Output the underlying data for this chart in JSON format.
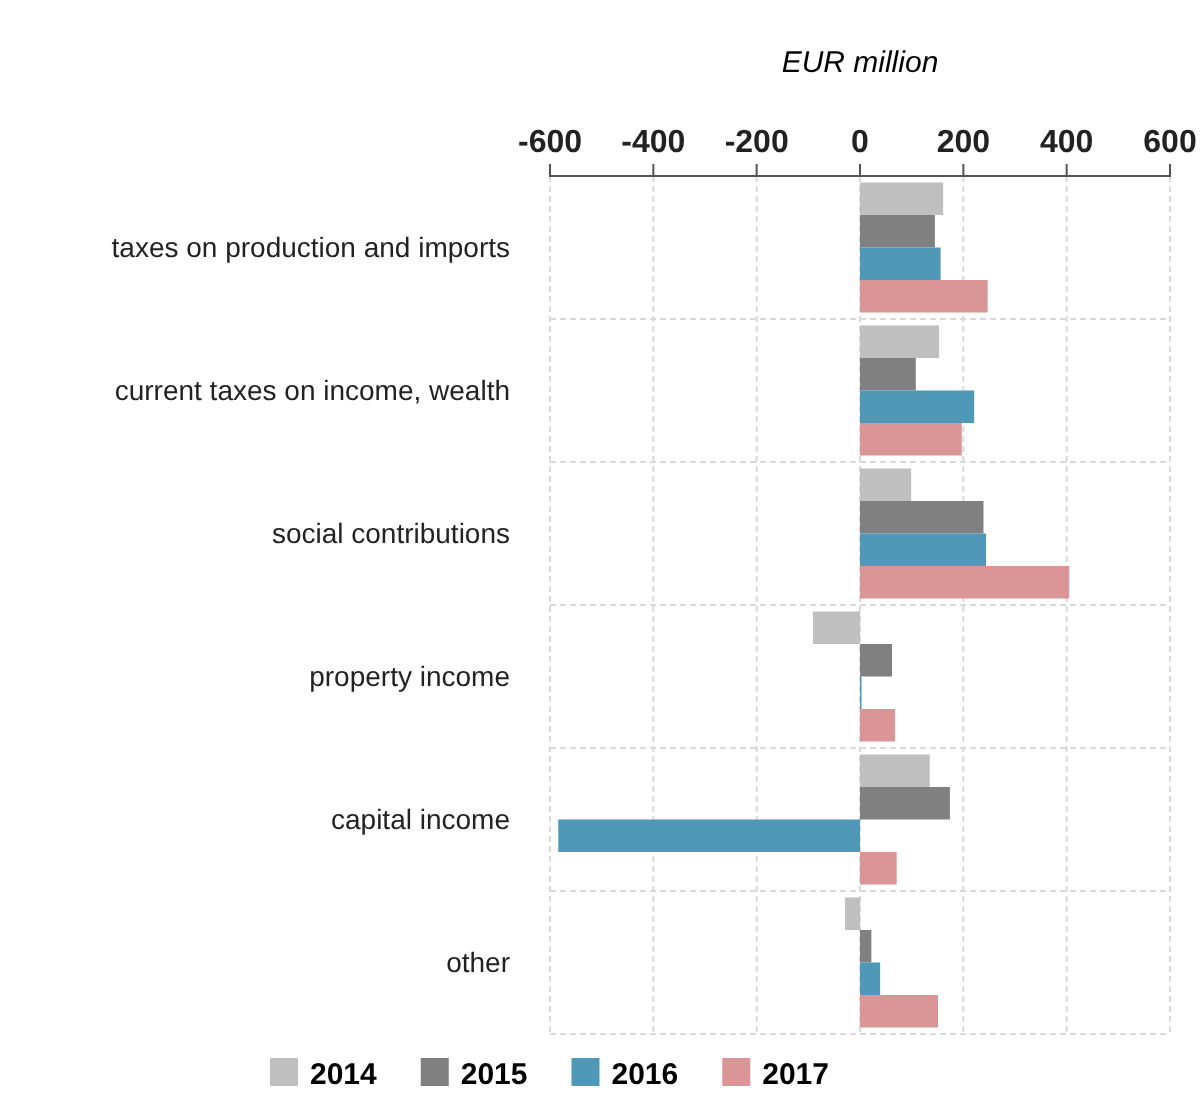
{
  "chart_data": {
    "type": "bar",
    "orientation": "horizontal",
    "xlabel": "EUR million",
    "categories": [
      "taxes on production and imports",
      "current taxes on income, wealth",
      "social contributions",
      "property income",
      "capital income",
      "other"
    ],
    "series": [
      {
        "name": "2014",
        "color": "#bfbfbf",
        "values": [
          161,
          153,
          99,
          -91,
          135,
          -29
        ]
      },
      {
        "name": "2015",
        "color": "#808080",
        "values": [
          145,
          108,
          239,
          62,
          174,
          22
        ]
      },
      {
        "name": "2016",
        "color": "#4f98b8",
        "values": [
          156,
          221,
          244,
          3,
          -584,
          39
        ]
      },
      {
        "name": "2017",
        "color": "#da9696",
        "values": [
          247,
          197,
          405,
          68,
          71,
          151
        ]
      }
    ],
    "xlim": [
      -600,
      600
    ],
    "xticks": [
      -600,
      -400,
      -200,
      0,
      200,
      400,
      600
    ],
    "grid": true,
    "legend": "bottom"
  }
}
